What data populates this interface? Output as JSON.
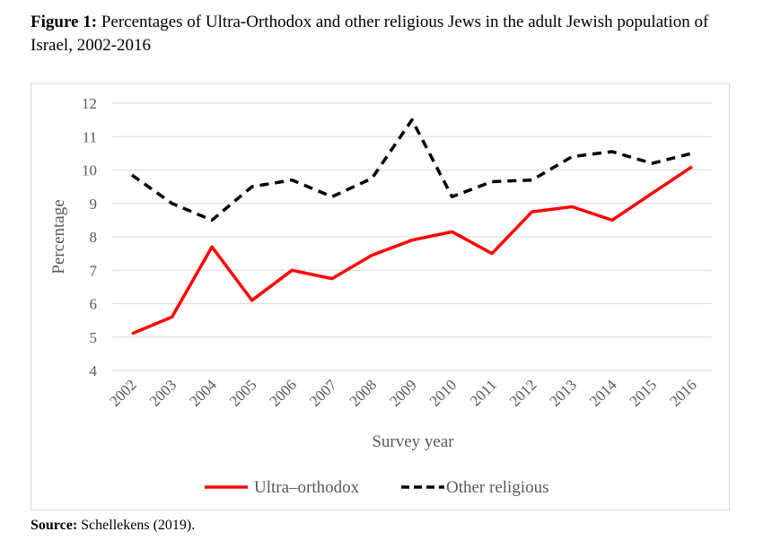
{
  "figure": {
    "label": "Figure 1:",
    "title": "Percentages of Ultra-Orthodox and other religious Jews in the adult Jewish population of Israel, 2002-2016"
  },
  "source": {
    "label": "Source:",
    "text": "Schellekens (2019)."
  },
  "chart_data": {
    "type": "line",
    "x": [
      "2002",
      "2003",
      "2004",
      "2005",
      "2006",
      "2007",
      "2008",
      "2009",
      "2010",
      "2011",
      "2012",
      "2013",
      "2014",
      "2015",
      "2016"
    ],
    "xlabel": "Survey year",
    "ylabel": "Percentage",
    "ylim": [
      4,
      12
    ],
    "yticks": [
      "4",
      "5",
      "6",
      "7",
      "8",
      "9",
      "10",
      "11",
      "12"
    ],
    "grid": true,
    "legend_position": "bottom",
    "series": [
      {
        "name": "Ultra–orthodox",
        "color": "#ff0000",
        "dash": "solid",
        "values": [
          5.1,
          5.6,
          7.7,
          6.1,
          7.0,
          6.75,
          7.45,
          7.9,
          8.15,
          7.5,
          8.75,
          8.9,
          8.5,
          9.3,
          10.1
        ]
      },
      {
        "name": "Other religious",
        "color": "#000000",
        "dash": "dashed",
        "values": [
          9.85,
          9.0,
          8.5,
          9.5,
          9.7,
          9.2,
          9.75,
          11.5,
          9.2,
          9.65,
          9.7,
          10.4,
          10.55,
          10.2,
          10.5
        ]
      }
    ]
  }
}
